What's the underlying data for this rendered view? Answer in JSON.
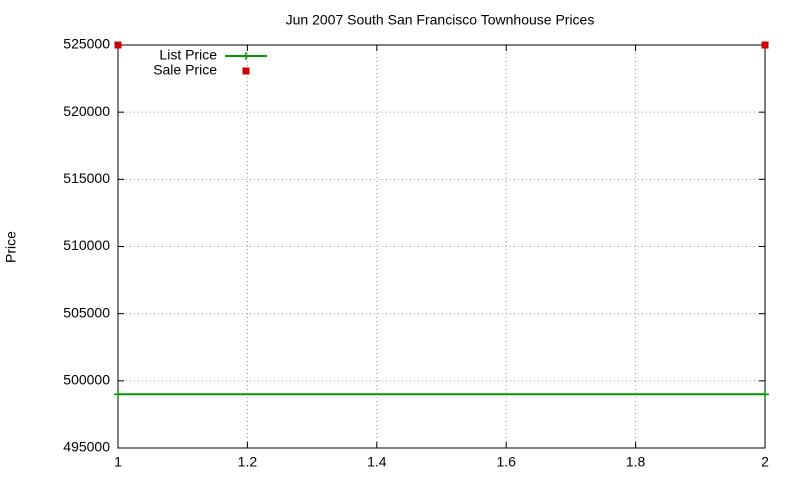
{
  "chart_data": {
    "type": "line",
    "title": "Jun 2007 South San Francisco Townhouse Prices",
    "y_label": "Price",
    "series": [
      {
        "name": "List Price",
        "color": "#009900",
        "style": "linespoints",
        "x": [
          1,
          2
        ],
        "values": [
          499000,
          499000
        ]
      },
      {
        "name": "Sale Price",
        "color": "#cc0000",
        "style": "points",
        "x": [
          1,
          2
        ],
        "values": [
          525000,
          525000
        ]
      }
    ],
    "xlim": [
      1,
      2
    ],
    "xticks": [
      1,
      1.2,
      1.4,
      1.6,
      1.8,
      2
    ],
    "ylim": [
      495000,
      525000
    ],
    "yticks": [
      495000,
      500000,
      505000,
      510000,
      515000,
      520000,
      525000
    ],
    "grid": true,
    "legend": "top-left"
  }
}
